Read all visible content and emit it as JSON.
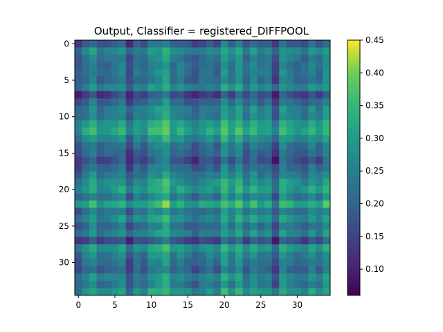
{
  "chart_data": {
    "type": "heatmap",
    "title": "Output, Classifier = registered_DIFFPOOL",
    "xlabel": "",
    "ylabel": "",
    "rows": 35,
    "cols": 35,
    "xlim": [
      -0.5,
      34.5
    ],
    "ylim": [
      34.5,
      -0.5
    ],
    "x_ticks": [
      0,
      5,
      10,
      15,
      20,
      25,
      30
    ],
    "y_ticks": [
      0,
      5,
      10,
      15,
      20,
      25,
      30
    ],
    "colormap": "viridis",
    "color_range": [
      0.06,
      0.45
    ],
    "colorbar_ticks": [
      0.1,
      0.15,
      0.2,
      0.25,
      0.3,
      0.35,
      0.4,
      0.45
    ],
    "colorbar_tick_labels": [
      "0.10",
      "0.15",
      "0.20",
      "0.25",
      "0.30",
      "0.35",
      "0.40",
      "0.45"
    ],
    "row_levels": [
      0.13,
      0.27,
      0.21,
      0.2,
      0.21,
      0.19,
      0.27,
      0.07,
      0.17,
      0.25,
      0.24,
      0.3,
      0.37,
      0.28,
      0.19,
      0.16,
      0.1,
      0.17,
      0.23,
      0.3,
      0.33,
      0.23,
      0.37,
      0.22,
      0.29,
      0.19,
      0.26,
      0.09,
      0.28,
      0.24,
      0.2,
      0.16,
      0.26,
      0.22,
      0.31
    ],
    "col_levels": [
      0.13,
      0.21,
      0.29,
      0.17,
      0.2,
      0.19,
      0.27,
      0.1,
      0.22,
      0.18,
      0.28,
      0.3,
      0.37,
      0.22,
      0.25,
      0.19,
      0.14,
      0.2,
      0.23,
      0.18,
      0.34,
      0.23,
      0.3,
      0.19,
      0.29,
      0.21,
      0.24,
      0.09,
      0.3,
      0.24,
      0.2,
      0.18,
      0.27,
      0.2,
      0.31
    ],
    "grid": false
  }
}
